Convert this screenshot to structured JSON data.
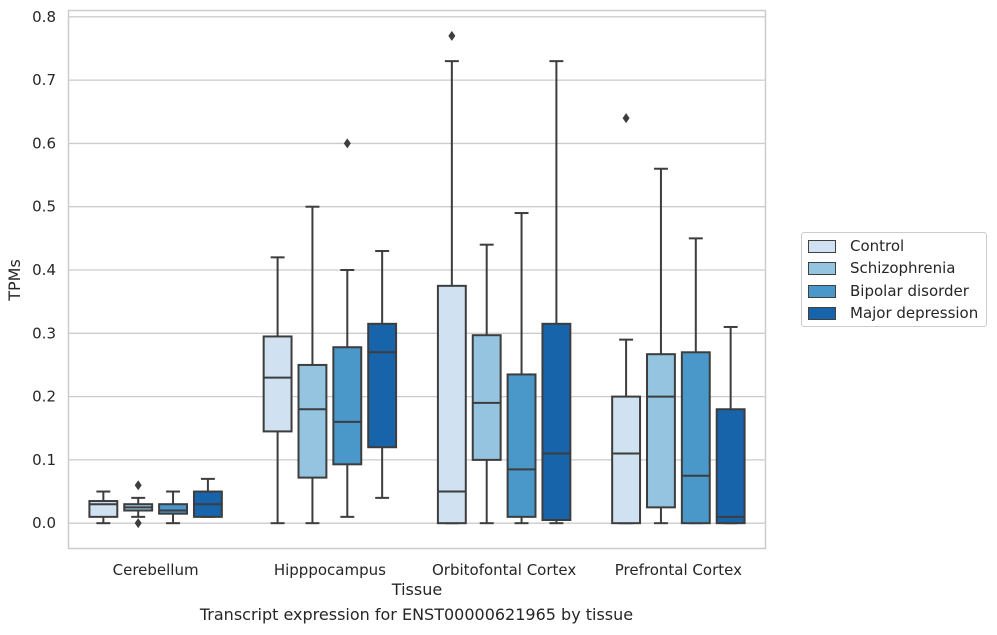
{
  "chart_data": {
    "type": "box",
    "title": "",
    "caption": "Transcript expression for ENST00000621965 by tissue",
    "xlabel": "Tissue",
    "ylabel": "TPMs",
    "ylim": [
      -0.04,
      0.81
    ],
    "yticks": [
      "0.0",
      "0.1",
      "0.2",
      "0.3",
      "0.4",
      "0.5",
      "0.6",
      "0.7",
      "0.8"
    ],
    "grid": "horizontal",
    "legend_position": "right",
    "categories": [
      "Cerebellum",
      "Hipppocampus",
      "Orbitofontal Cortex",
      "Prefrontal Cortex"
    ],
    "series": [
      {
        "name": "Control",
        "color": "#d0e1f2",
        "boxes": [
          {
            "whislo": 0.0,
            "q1": 0.01,
            "med": 0.03,
            "q3": 0.035,
            "whishi": 0.05,
            "fliers": []
          },
          {
            "whislo": 0.0,
            "q1": 0.145,
            "med": 0.23,
            "q3": 0.295,
            "whishi": 0.42,
            "fliers": []
          },
          {
            "whislo": 0.0,
            "q1": 0.0,
            "med": 0.05,
            "q3": 0.375,
            "whishi": 0.73,
            "fliers": [
              0.77
            ]
          },
          {
            "whislo": 0.0,
            "q1": 0.0,
            "med": 0.11,
            "q3": 0.2,
            "whishi": 0.29,
            "fliers": [
              0.64
            ]
          }
        ]
      },
      {
        "name": "Schizophrenia",
        "color": "#94c4df",
        "boxes": [
          {
            "whislo": 0.01,
            "q1": 0.02,
            "med": 0.025,
            "q3": 0.03,
            "whishi": 0.04,
            "fliers": [
              0.06,
              0.0
            ]
          },
          {
            "whislo": 0.0,
            "q1": 0.072,
            "med": 0.18,
            "q3": 0.25,
            "whishi": 0.5,
            "fliers": []
          },
          {
            "whislo": 0.0,
            "q1": 0.1,
            "med": 0.19,
            "q3": 0.297,
            "whishi": 0.44,
            "fliers": []
          },
          {
            "whislo": 0.0,
            "q1": 0.025,
            "med": 0.2,
            "q3": 0.267,
            "whishi": 0.56,
            "fliers": []
          }
        ]
      },
      {
        "name": "Bipolar disorder",
        "color": "#4a98c9",
        "boxes": [
          {
            "whislo": 0.0,
            "q1": 0.015,
            "med": 0.02,
            "q3": 0.03,
            "whishi": 0.05,
            "fliers": []
          },
          {
            "whislo": 0.01,
            "q1": 0.093,
            "med": 0.16,
            "q3": 0.278,
            "whishi": 0.4,
            "fliers": [
              0.6
            ]
          },
          {
            "whislo": 0.0,
            "q1": 0.01,
            "med": 0.085,
            "q3": 0.235,
            "whishi": 0.49,
            "fliers": []
          },
          {
            "whislo": 0.0,
            "q1": 0.0,
            "med": 0.075,
            "q3": 0.27,
            "whishi": 0.45,
            "fliers": []
          }
        ]
      },
      {
        "name": "Major depression",
        "color": "#1764ab",
        "boxes": [
          {
            "whislo": 0.01,
            "q1": 0.01,
            "med": 0.03,
            "q3": 0.05,
            "whishi": 0.07,
            "fliers": []
          },
          {
            "whislo": 0.04,
            "q1": 0.12,
            "med": 0.27,
            "q3": 0.315,
            "whishi": 0.43,
            "fliers": []
          },
          {
            "whislo": 0.0,
            "q1": 0.005,
            "med": 0.11,
            "q3": 0.315,
            "whishi": 0.73,
            "fliers": []
          },
          {
            "whislo": 0.0,
            "q1": 0.0,
            "med": 0.01,
            "q3": 0.18,
            "whishi": 0.31,
            "fliers": []
          }
        ]
      }
    ]
  }
}
